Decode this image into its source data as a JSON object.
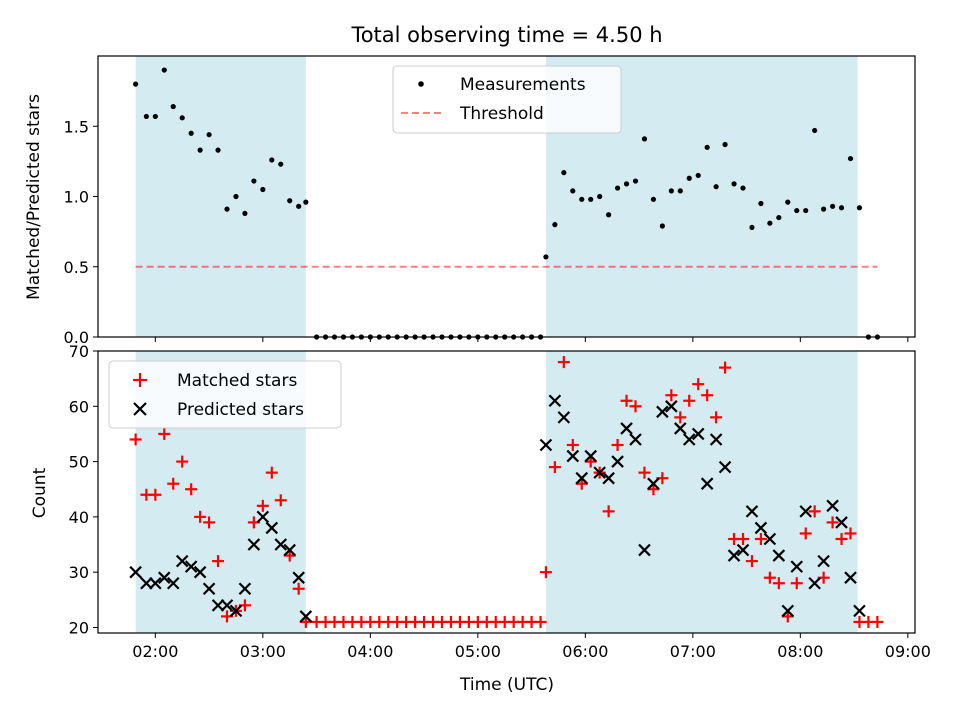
{
  "title": "Total observing time = 4.50 h",
  "colors": {
    "shade": "#add8e6",
    "measurement": "#000000",
    "threshold": "#ff0000",
    "matched": "#ff0000",
    "predicted": "#000000"
  },
  "chart_data": [
    {
      "type": "scatter",
      "title": "Total observing time = 4.50 h",
      "xlabel": "",
      "ylabel": "Matched/Predicted stars",
      "xlim": [
        "01:28",
        "09:04"
      ],
      "ylim": [
        0,
        2.0
      ],
      "yticks": [
        "0.0",
        "0.5",
        "1.0",
        "1.5"
      ],
      "xticks": [
        "02:00",
        "03:00",
        "04:00",
        "05:00",
        "06:00",
        "07:00",
        "08:00",
        "09:00"
      ],
      "shaded_intervals": [
        [
          "01:49",
          "03:24"
        ],
        [
          "05:38",
          "08:32"
        ]
      ],
      "legend_position": "upper center",
      "threshold": 0.5,
      "series": [
        {
          "name": "Measurements",
          "marker": "dot",
          "color": "#000000",
          "x": [
            "01:49",
            "01:55",
            "02:00",
            "02:05",
            "02:10",
            "02:15",
            "02:20",
            "02:25",
            "02:30",
            "02:35",
            "02:40",
            "02:45",
            "02:50",
            "02:55",
            "03:00",
            "03:05",
            "03:10",
            "03:15",
            "03:20",
            "03:24",
            "03:30",
            "03:35",
            "03:40",
            "03:45",
            "03:50",
            "03:55",
            "04:00",
            "04:05",
            "04:10",
            "04:15",
            "04:20",
            "04:25",
            "04:30",
            "04:35",
            "04:40",
            "04:45",
            "04:50",
            "04:55",
            "05:00",
            "05:05",
            "05:10",
            "05:15",
            "05:20",
            "05:25",
            "05:30",
            "05:35",
            "05:38",
            "05:43",
            "05:48",
            "05:53",
            "05:58",
            "06:03",
            "06:08",
            "06:13",
            "06:18",
            "06:23",
            "06:28",
            "06:33",
            "06:38",
            "06:43",
            "06:48",
            "06:53",
            "06:58",
            "07:03",
            "07:08",
            "07:13",
            "07:18",
            "07:23",
            "07:28",
            "07:33",
            "07:38",
            "07:43",
            "07:48",
            "07:53",
            "07:58",
            "08:03",
            "08:08",
            "08:13",
            "08:18",
            "08:23",
            "08:28",
            "08:33",
            "08:38",
            "08:43"
          ],
          "y": [
            1.8,
            1.57,
            1.57,
            1.9,
            1.64,
            1.56,
            1.45,
            1.33,
            1.44,
            1.33,
            0.91,
            1.0,
            0.88,
            1.11,
            1.05,
            1.26,
            1.23,
            0.97,
            0.93,
            0.96,
            0,
            0,
            0,
            0,
            0,
            0,
            0,
            0,
            0,
            0,
            0,
            0,
            0,
            0,
            0,
            0,
            0,
            0,
            0,
            0,
            0,
            0,
            0,
            0,
            0,
            0,
            0.57,
            0.8,
            1.17,
            1.04,
            0.98,
            0.98,
            1.0,
            0.87,
            1.06,
            1.09,
            1.11,
            1.41,
            0.98,
            0.79,
            1.04,
            1.04,
            1.13,
            1.15,
            1.35,
            1.07,
            1.37,
            1.09,
            1.06,
            0.78,
            0.95,
            0.81,
            0.85,
            0.96,
            0.9,
            0.9,
            1.47,
            0.91,
            0.93,
            0.92,
            1.27,
            0.92,
            0,
            0
          ]
        },
        {
          "name": "Threshold",
          "marker": "dashed-line",
          "color": "#ff0000",
          "x": [
            "01:49",
            "08:43"
          ],
          "y": [
            0.5,
            0.5
          ]
        }
      ]
    },
    {
      "type": "scatter",
      "xlabel": "Time (UTC)",
      "ylabel": "Count",
      "xlim": [
        "01:28",
        "09:04"
      ],
      "ylim": [
        19,
        70
      ],
      "yticks": [
        "20",
        "30",
        "40",
        "50",
        "60",
        "70"
      ],
      "xticks": [
        "02:00",
        "03:00",
        "04:00",
        "05:00",
        "06:00",
        "07:00",
        "08:00",
        "09:00"
      ],
      "shaded_intervals": [
        [
          "01:49",
          "03:24"
        ],
        [
          "05:38",
          "08:32"
        ]
      ],
      "legend_position": "upper left",
      "series": [
        {
          "name": "Matched stars",
          "marker": "plus",
          "color": "#ff0000",
          "x": [
            "01:49",
            "01:55",
            "02:00",
            "02:05",
            "02:10",
            "02:15",
            "02:20",
            "02:25",
            "02:30",
            "02:35",
            "02:40",
            "02:45",
            "02:50",
            "02:55",
            "03:00",
            "03:05",
            "03:10",
            "03:15",
            "03:20",
            "03:24",
            "03:30",
            "03:35",
            "03:40",
            "03:45",
            "03:50",
            "03:55",
            "04:00",
            "04:05",
            "04:10",
            "04:15",
            "04:20",
            "04:25",
            "04:30",
            "04:35",
            "04:40",
            "04:45",
            "04:50",
            "04:55",
            "05:00",
            "05:05",
            "05:10",
            "05:15",
            "05:20",
            "05:25",
            "05:30",
            "05:35",
            "05:38",
            "05:43",
            "05:48",
            "05:53",
            "05:58",
            "06:03",
            "06:08",
            "06:13",
            "06:18",
            "06:23",
            "06:28",
            "06:33",
            "06:38",
            "06:43",
            "06:48",
            "06:53",
            "06:58",
            "07:03",
            "07:08",
            "07:13",
            "07:18",
            "07:23",
            "07:28",
            "07:33",
            "07:38",
            "07:43",
            "07:48",
            "07:53",
            "07:58",
            "08:03",
            "08:08",
            "08:13",
            "08:18",
            "08:23",
            "08:28",
            "08:33",
            "08:38",
            "08:43"
          ],
          "y": [
            54,
            44,
            44,
            55,
            46,
            50,
            45,
            40,
            39,
            32,
            22,
            23,
            24,
            39,
            42,
            48,
            43,
            33,
            27,
            21,
            21,
            21,
            21,
            21,
            21,
            21,
            21,
            21,
            21,
            21,
            21,
            21,
            21,
            21,
            21,
            21,
            21,
            21,
            21,
            21,
            21,
            21,
            21,
            21,
            21,
            21,
            30,
            49,
            68,
            53,
            46,
            50,
            48,
            41,
            53,
            61,
            60,
            48,
            45,
            47,
            62,
            58,
            61,
            64,
            62,
            58,
            67,
            36,
            36,
            32,
            36,
            29,
            28,
            22,
            28,
            37,
            41,
            29,
            39,
            36,
            37,
            21,
            21,
            21
          ]
        },
        {
          "name": "Predicted stars",
          "marker": "x",
          "color": "#000000",
          "x": [
            "01:49",
            "01:55",
            "02:00",
            "02:05",
            "02:10",
            "02:15",
            "02:20",
            "02:25",
            "02:30",
            "02:35",
            "02:40",
            "02:45",
            "02:50",
            "02:55",
            "03:00",
            "03:05",
            "03:10",
            "03:15",
            "03:20",
            "03:24",
            "05:38",
            "05:43",
            "05:48",
            "05:53",
            "05:58",
            "06:03",
            "06:08",
            "06:13",
            "06:18",
            "06:23",
            "06:28",
            "06:33",
            "06:38",
            "06:43",
            "06:48",
            "06:53",
            "06:58",
            "07:03",
            "07:08",
            "07:13",
            "07:18",
            "07:23",
            "07:28",
            "07:33",
            "07:38",
            "07:43",
            "07:48",
            "07:53",
            "07:58",
            "08:03",
            "08:08",
            "08:13",
            "08:18",
            "08:23",
            "08:28",
            "08:33"
          ],
          "y": [
            30,
            28,
            28,
            29,
            28,
            32,
            31,
            30,
            27,
            24,
            24,
            23,
            27,
            35,
            40,
            38,
            35,
            34,
            29,
            22,
            53,
            61,
            58,
            51,
            47,
            51,
            48,
            47,
            50,
            56,
            54,
            34,
            46,
            59,
            60,
            56,
            54,
            55,
            46,
            54,
            49,
            33,
            34,
            41,
            38,
            36,
            33,
            23,
            31,
            41,
            28,
            32,
            42,
            39,
            29,
            23
          ]
        }
      ]
    }
  ]
}
